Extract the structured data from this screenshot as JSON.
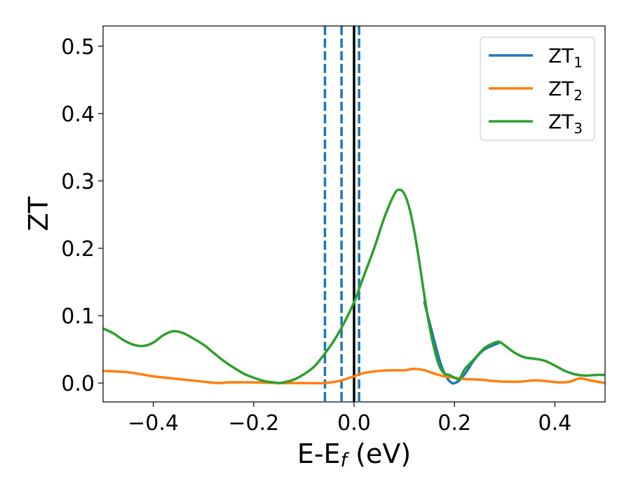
{
  "chart_data": {
    "type": "line",
    "xlabel": "E-E",
    "xlabel_sub": "f",
    "xlabel_unit": " (eV)",
    "ylabel": "ZT",
    "xlim": [
      -0.5,
      0.5
    ],
    "ylim": [
      -0.028,
      0.53
    ],
    "x_ticks": [
      -0.4,
      -0.2,
      0.0,
      0.2,
      0.4
    ],
    "x_tick_labels": [
      "−0.4",
      "−0.2",
      "0.0",
      "0.2",
      "0.4"
    ],
    "y_ticks": [
      0.0,
      0.1,
      0.2,
      0.3,
      0.4,
      0.5
    ],
    "y_tick_labels": [
      "0.0",
      "0.1",
      "0.2",
      "0.3",
      "0.4",
      "0.5"
    ],
    "grid": false,
    "legend_position": "top-right",
    "vlines": [
      {
        "x": -0.058,
        "style": "dashed",
        "color": "#1f77b4"
      },
      {
        "x": -0.025,
        "style": "dashed",
        "color": "#1f77b4"
      },
      {
        "x": 0.01,
        "style": "dashed",
        "color": "#1f77b4"
      },
      {
        "x": 0.0,
        "style": "solid",
        "color": "#000000"
      }
    ],
    "series": [
      {
        "name": "ZT",
        "name_sub": "1",
        "color": "#1f77b4",
        "x": [
          0.14,
          0.17,
          0.185,
          0.195,
          0.2,
          0.21,
          0.225,
          0.24,
          0.26,
          0.29
        ],
        "y": [
          0.12,
          0.035,
          0.008,
          0.0,
          0.0,
          0.004,
          0.018,
          0.035,
          0.05,
          0.06
        ]
      },
      {
        "name": "ZT",
        "name_sub": "2",
        "color": "#ff7f0e",
        "x": [
          -0.5,
          -0.45,
          -0.4,
          -0.35,
          -0.3,
          -0.27,
          -0.25,
          -0.2,
          -0.15,
          -0.1,
          -0.06,
          -0.03,
          0.0,
          0.02,
          0.05,
          0.08,
          0.1,
          0.12,
          0.14,
          0.16,
          0.18,
          0.2,
          0.22,
          0.25,
          0.28,
          0.3,
          0.33,
          0.36,
          0.38,
          0.41,
          0.43,
          0.45,
          0.47,
          0.5
        ],
        "y": [
          0.018,
          0.016,
          0.01,
          0.006,
          0.002,
          0.0,
          0.001,
          0.001,
          0.0,
          0.0,
          0.0,
          0.003,
          0.01,
          0.015,
          0.018,
          0.019,
          0.019,
          0.021,
          0.019,
          0.014,
          0.01,
          0.008,
          0.006,
          0.005,
          0.003,
          0.002,
          0.002,
          0.004,
          0.003,
          0.001,
          0.002,
          0.007,
          0.004,
          0.0
        ]
      },
      {
        "name": "ZT",
        "name_sub": "3",
        "color": "#2ca02c",
        "x": [
          -0.5,
          -0.48,
          -0.46,
          -0.44,
          -0.42,
          -0.4,
          -0.38,
          -0.36,
          -0.34,
          -0.32,
          -0.3,
          -0.28,
          -0.26,
          -0.24,
          -0.22,
          -0.2,
          -0.18,
          -0.16,
          -0.15,
          -0.14,
          -0.12,
          -0.1,
          -0.08,
          -0.06,
          -0.04,
          -0.02,
          0.0,
          0.02,
          0.04,
          0.06,
          0.08,
          0.09,
          0.1,
          0.11,
          0.12,
          0.13,
          0.14,
          0.15,
          0.16,
          0.17,
          0.18,
          0.19,
          0.2,
          0.21,
          0.22,
          0.24,
          0.26,
          0.28,
          0.29,
          0.3,
          0.32,
          0.34,
          0.36,
          0.38,
          0.4,
          0.42,
          0.44,
          0.46,
          0.48,
          0.5
        ],
        "y": [
          0.081,
          0.074,
          0.064,
          0.057,
          0.055,
          0.06,
          0.071,
          0.077,
          0.074,
          0.066,
          0.057,
          0.045,
          0.033,
          0.023,
          0.014,
          0.008,
          0.003,
          0.001,
          0.0,
          0.001,
          0.005,
          0.013,
          0.024,
          0.042,
          0.063,
          0.089,
          0.12,
          0.16,
          0.2,
          0.245,
          0.28,
          0.287,
          0.281,
          0.26,
          0.225,
          0.18,
          0.13,
          0.085,
          0.05,
          0.025,
          0.014,
          0.012,
          0.008,
          0.006,
          0.02,
          0.036,
          0.052,
          0.06,
          0.061,
          0.056,
          0.045,
          0.038,
          0.036,
          0.033,
          0.026,
          0.018,
          0.013,
          0.011,
          0.012,
          0.012
        ]
      }
    ]
  }
}
